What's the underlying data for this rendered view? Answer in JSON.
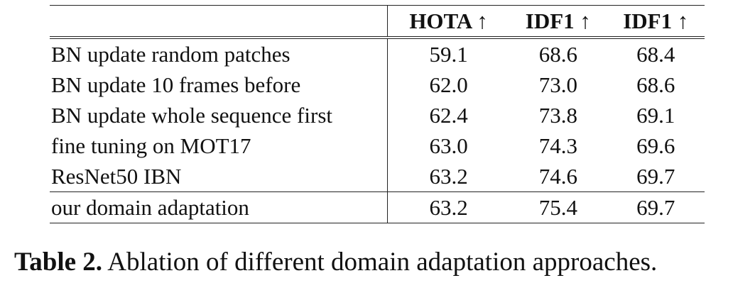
{
  "table": {
    "headers": [
      "",
      "HOTA ↑",
      "IDF1 ↑",
      "IDF1 ↑"
    ],
    "rows": [
      {
        "label": "BN update random patches",
        "values": [
          "59.1",
          "68.6",
          "68.4"
        ]
      },
      {
        "label": "BN update 10 frames before",
        "values": [
          "62.0",
          "73.0",
          "68.6"
        ]
      },
      {
        "label": "BN update whole sequence first",
        "values": [
          "62.4",
          "73.8",
          "69.1"
        ]
      },
      {
        "label": "fine tuning on MOT17",
        "values": [
          "63.0",
          "74.3",
          "69.6"
        ]
      },
      {
        "label": "ResNet50 IBN",
        "values": [
          "63.2",
          "74.6",
          "69.7"
        ]
      },
      {
        "label": "our domain adaptation",
        "values": [
          "63.2",
          "75.4",
          "69.7"
        ]
      }
    ]
  },
  "caption": {
    "label": "Table 2.",
    "text": " Ablation of different domain adaptation approaches."
  }
}
